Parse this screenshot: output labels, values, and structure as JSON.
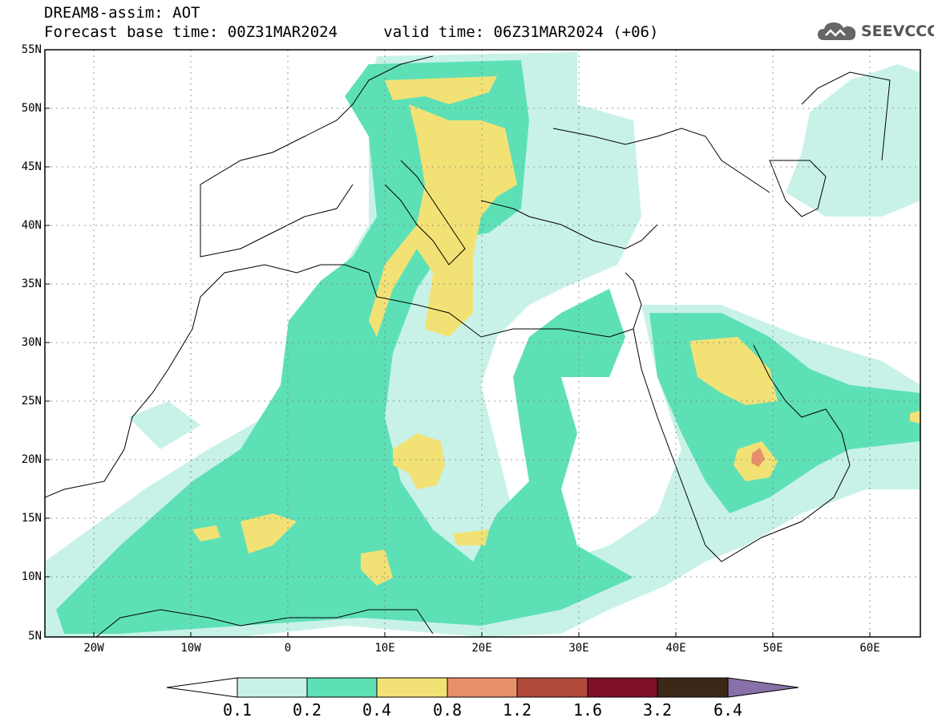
{
  "header": {
    "title": "DREAM8-assim: AOT",
    "base_time": "Forecast base time: 00Z31MAR2024",
    "valid_time": "valid time: 06Z31MAR2024 (+06)",
    "logo_text": "SEEVCCC",
    "logo_icon": "cloud-icon"
  },
  "map": {
    "variable": "AOT",
    "lat_range": [
      5,
      55
    ],
    "lon_range": [
      -25,
      65
    ],
    "lat_labels": [
      "55N",
      "50N",
      "45N",
      "40N",
      "35N",
      "30N",
      "25N",
      "20N",
      "15N",
      "10N",
      "5N"
    ],
    "lat_values": [
      55,
      50,
      45,
      40,
      35,
      30,
      25,
      20,
      15,
      10,
      5
    ],
    "lon_labels": [
      "20W",
      "10W",
      "0",
      "10E",
      "20E",
      "30E",
      "40E",
      "50E",
      "60E"
    ],
    "lon_values": [
      -20,
      -10,
      0,
      10,
      20,
      30,
      40,
      50,
      60
    ],
    "grid": true
  },
  "colorbar": {
    "levels": [
      "0.1",
      "0.2",
      "0.4",
      "0.8",
      "1.2",
      "1.6",
      "3.2",
      "6.4"
    ],
    "colors": [
      "#c8f2e8",
      "#5ee0b6",
      "#f2e276",
      "#e8906a",
      "#b04a3a",
      "#80102a",
      "#3c2818",
      "#8870a8"
    ],
    "under_color": "#ffffff",
    "over_color": "#8870a8"
  }
}
